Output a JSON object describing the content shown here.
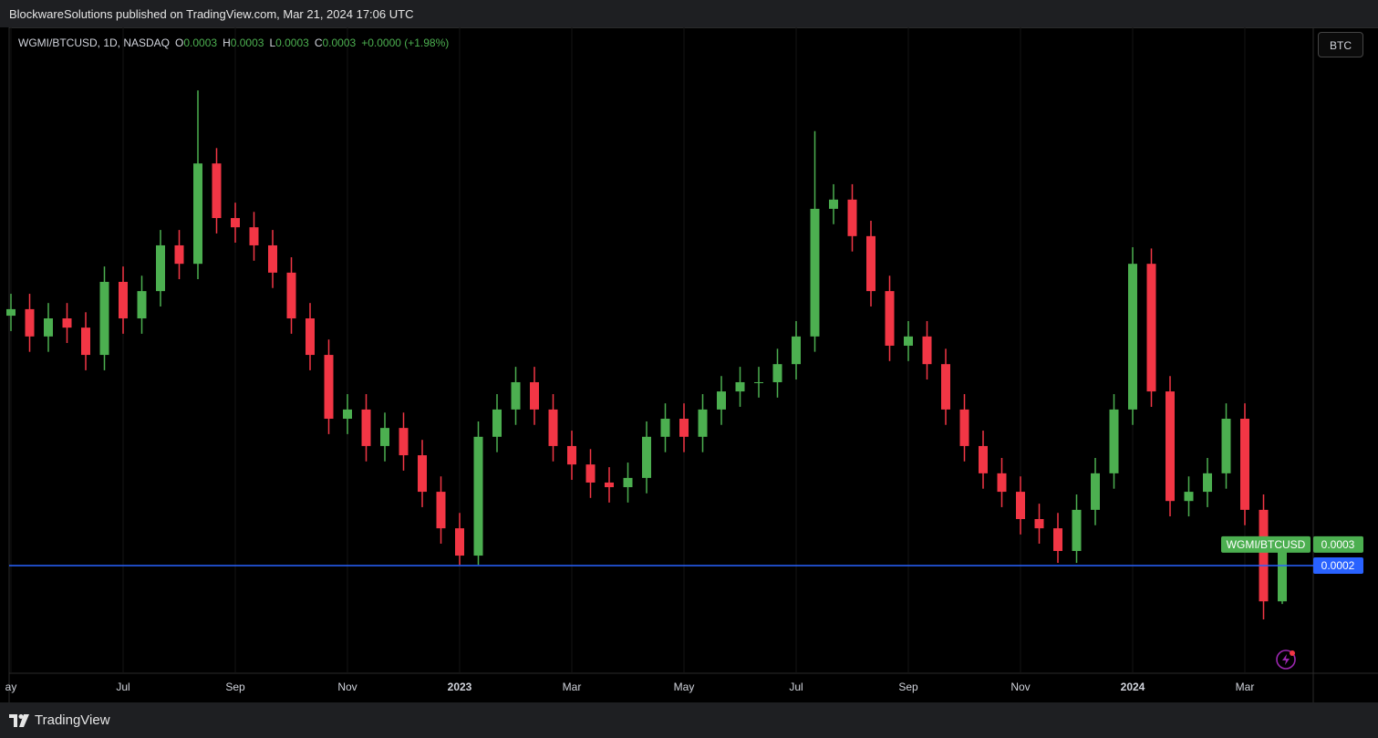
{
  "header": {
    "published": "BlockwareSolutions published on TradingView.com, Mar 21, 2024 17:06 UTC"
  },
  "footer": {
    "brand": "TradingView"
  },
  "toolbar": {
    "button": "BTC"
  },
  "legend": {
    "symbol": "WGMI/BTCUSD, 1D, NASDAQ",
    "ohlc": [
      {
        "key": "O",
        "value": "0.0003"
      },
      {
        "key": "H",
        "value": "0.0003"
      },
      {
        "key": "L",
        "value": "0.0003"
      },
      {
        "key": "C",
        "value": "0.0003"
      }
    ],
    "change": "+0.0000 (+1.98%)"
  },
  "chart_data": {
    "type": "candlestick",
    "categories": [
      "ay",
      null,
      null,
      null,
      null,
      null,
      "Jul",
      null,
      null,
      null,
      null,
      null,
      "Sep",
      null,
      null,
      null,
      null,
      null,
      "Nov",
      null,
      null,
      null,
      null,
      null,
      "2023",
      null,
      null,
      null,
      null,
      null,
      "Mar",
      null,
      null,
      null,
      null,
      null,
      "May",
      null,
      null,
      null,
      null,
      null,
      "Jul",
      null,
      null,
      null,
      null,
      null,
      "Sep",
      null,
      null,
      null,
      null,
      null,
      "Nov",
      null,
      null,
      null,
      null,
      null,
      "2024",
      null,
      null,
      null,
      null,
      null,
      "Mar",
      null,
      null
    ],
    "ylim": [
      -8e-05,
      0.0016
    ],
    "up_color": "#4caf50",
    "down_color": "#f23645",
    "series": [
      {
        "name": "WGMI/BTCUSD",
        "open": [
          0.00085,
          0.000867,
          0.000796,
          0.000843,
          0.000819,
          0.000748,
          0.000938,
          0.000843,
          0.000914,
          0.001033,
          0.000985,
          0.001246,
          0.001104,
          0.00108,
          0.001033,
          0.000962,
          0.000843,
          0.000748,
          0.000582,
          0.000606,
          0.000511,
          0.000558,
          0.000487,
          0.000392,
          0.000297,
          0.000226,
          0.000535,
          0.000606,
          0.000677,
          0.000606,
          0.000511,
          0.000463,
          0.000416,
          0.000404,
          0.000428,
          0.000535,
          0.000582,
          0.000535,
          0.000606,
          0.000653,
          0.000677,
          0.000677,
          0.000724,
          0.000796,
          0.001128,
          0.001152,
          0.001057,
          0.000914,
          0.000772,
          0.000796,
          0.000724,
          0.000606,
          0.000511,
          0.00044,
          0.000392,
          0.000321,
          0.000297,
          0.000238,
          0.000345,
          0.00044,
          0.000606,
          0.000985,
          0.000653,
          0.000368,
          0.000392,
          0.00044,
          0.000582,
          0.000345,
          0.000107
        ],
        "high": [
          0.000907,
          0.000907,
          0.000883,
          0.000883,
          0.000859,
          0.000978,
          0.000978,
          0.000954,
          0.001073,
          0.001073,
          0.001436,
          0.001286,
          0.001144,
          0.00112,
          0.001073,
          0.001002,
          0.000883,
          0.000788,
          0.000646,
          0.000646,
          0.000598,
          0.000598,
          0.000527,
          0.000432,
          0.000337,
          0.000575,
          0.000646,
          0.000717,
          0.000717,
          0.000646,
          0.000551,
          0.000503,
          0.000456,
          0.000468,
          0.000575,
          0.000622,
          0.000622,
          0.000646,
          0.000693,
          0.000717,
          0.000717,
          0.000764,
          0.000836,
          0.00133,
          0.001192,
          0.001192,
          0.001097,
          0.000954,
          0.000836,
          0.000836,
          0.000764,
          0.000646,
          0.000551,
          0.00048,
          0.000432,
          0.000361,
          0.000337,
          0.000385,
          0.00048,
          0.000646,
          0.001028,
          0.001025,
          0.000693,
          0.000432,
          0.00048,
          0.000622,
          0.000622,
          0.000385,
          0.000265
        ],
        "low": [
          0.00081,
          0.000756,
          0.000756,
          0.000779,
          0.000708,
          0.000708,
          0.000803,
          0.000803,
          0.000874,
          0.000945,
          0.000945,
          0.001064,
          0.00104,
          0.000993,
          0.000922,
          0.000803,
          0.000708,
          0.000542,
          0.000542,
          0.000471,
          0.000471,
          0.000447,
          0.000352,
          0.000257,
          0.000202,
          0.000202,
          0.000495,
          0.000566,
          0.000566,
          0.000471,
          0.000423,
          0.000376,
          0.000364,
          0.000364,
          0.000388,
          0.000495,
          0.000495,
          0.000495,
          0.000566,
          0.000613,
          0.000637,
          0.000637,
          0.000684,
          0.000756,
          0.001088,
          0.001017,
          0.000874,
          0.000732,
          0.000732,
          0.000684,
          0.000566,
          0.000471,
          0.0004,
          0.000352,
          0.000281,
          0.000257,
          0.000207,
          0.000207,
          0.000305,
          0.0004,
          0.000566,
          0.000613,
          0.000328,
          0.000328,
          0.000352,
          0.0004,
          0.000305,
          6e-05,
          0.0001
        ],
        "close": [
          0.000867,
          0.000796,
          0.000843,
          0.000819,
          0.000748,
          0.000938,
          0.000843,
          0.000914,
          0.001033,
          0.000985,
          0.001246,
          0.001104,
          0.00108,
          0.001033,
          0.000962,
          0.000843,
          0.000748,
          0.000582,
          0.000606,
          0.000511,
          0.000558,
          0.000487,
          0.000392,
          0.000297,
          0.000226,
          0.000535,
          0.000606,
          0.000677,
          0.000606,
          0.000511,
          0.000463,
          0.000416,
          0.000404,
          0.000428,
          0.000535,
          0.000582,
          0.000535,
          0.000606,
          0.000653,
          0.000677,
          0.000677,
          0.000724,
          0.000796,
          0.001128,
          0.001152,
          0.001057,
          0.000914,
          0.000772,
          0.000796,
          0.000724,
          0.000606,
          0.000511,
          0.00044,
          0.000392,
          0.000321,
          0.000297,
          0.000238,
          0.000345,
          0.00044,
          0.000606,
          0.000985,
          0.000653,
          0.000368,
          0.000392,
          0.00044,
          0.000582,
          0.000345,
          0.000107,
          0.000255
        ],
        "last_value_label": "0.0003"
      }
    ],
    "price_line": {
      "value": 0.0002,
      "color": "#2962ff"
    }
  }
}
